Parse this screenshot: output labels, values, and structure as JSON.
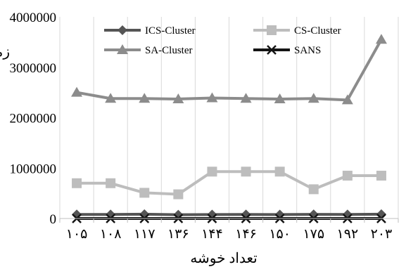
{
  "chart_data": {
    "type": "line",
    "xlabel": "تعداد خوشه",
    "ylabel": "زمان اجرا",
    "categories": [
      "۱۰۵",
      "۱۰۸",
      "۱۱۷",
      "۱۳۶",
      "۱۴۴",
      "۱۴۶",
      "۱۵۰",
      "۱۷۵",
      "۱۹۲",
      "۲۰۳"
    ],
    "ylim": [
      0,
      4000000
    ],
    "yticks": [
      0,
      1000000,
      2000000,
      3000000,
      4000000
    ],
    "ytick_labels": [
      "0",
      "1000000",
      "2000000",
      "3000000",
      "4000000"
    ],
    "grid": "vertical",
    "legend": "top",
    "series": [
      {
        "name": "ICS-Cluster",
        "color": "#555555",
        "marker": "diamond",
        "values": [
          80000,
          80000,
          85000,
          75000,
          78000,
          80000,
          78000,
          82000,
          80000,
          85000
        ]
      },
      {
        "name": "CS-Cluster",
        "color": "#bdbdbd",
        "marker": "square",
        "values": [
          700000,
          700000,
          510000,
          480000,
          930000,
          930000,
          930000,
          580000,
          850000,
          850000
        ]
      },
      {
        "name": "SA-Cluster",
        "color": "#8c8c8c",
        "marker": "triangle",
        "values": [
          2500000,
          2380000,
          2380000,
          2370000,
          2390000,
          2380000,
          2370000,
          2380000,
          2350000,
          3550000
        ]
      },
      {
        "name": "SANS",
        "color": "#141414",
        "marker": "x",
        "values": [
          0,
          0,
          0,
          0,
          0,
          0,
          0,
          0,
          0,
          0
        ]
      }
    ]
  }
}
